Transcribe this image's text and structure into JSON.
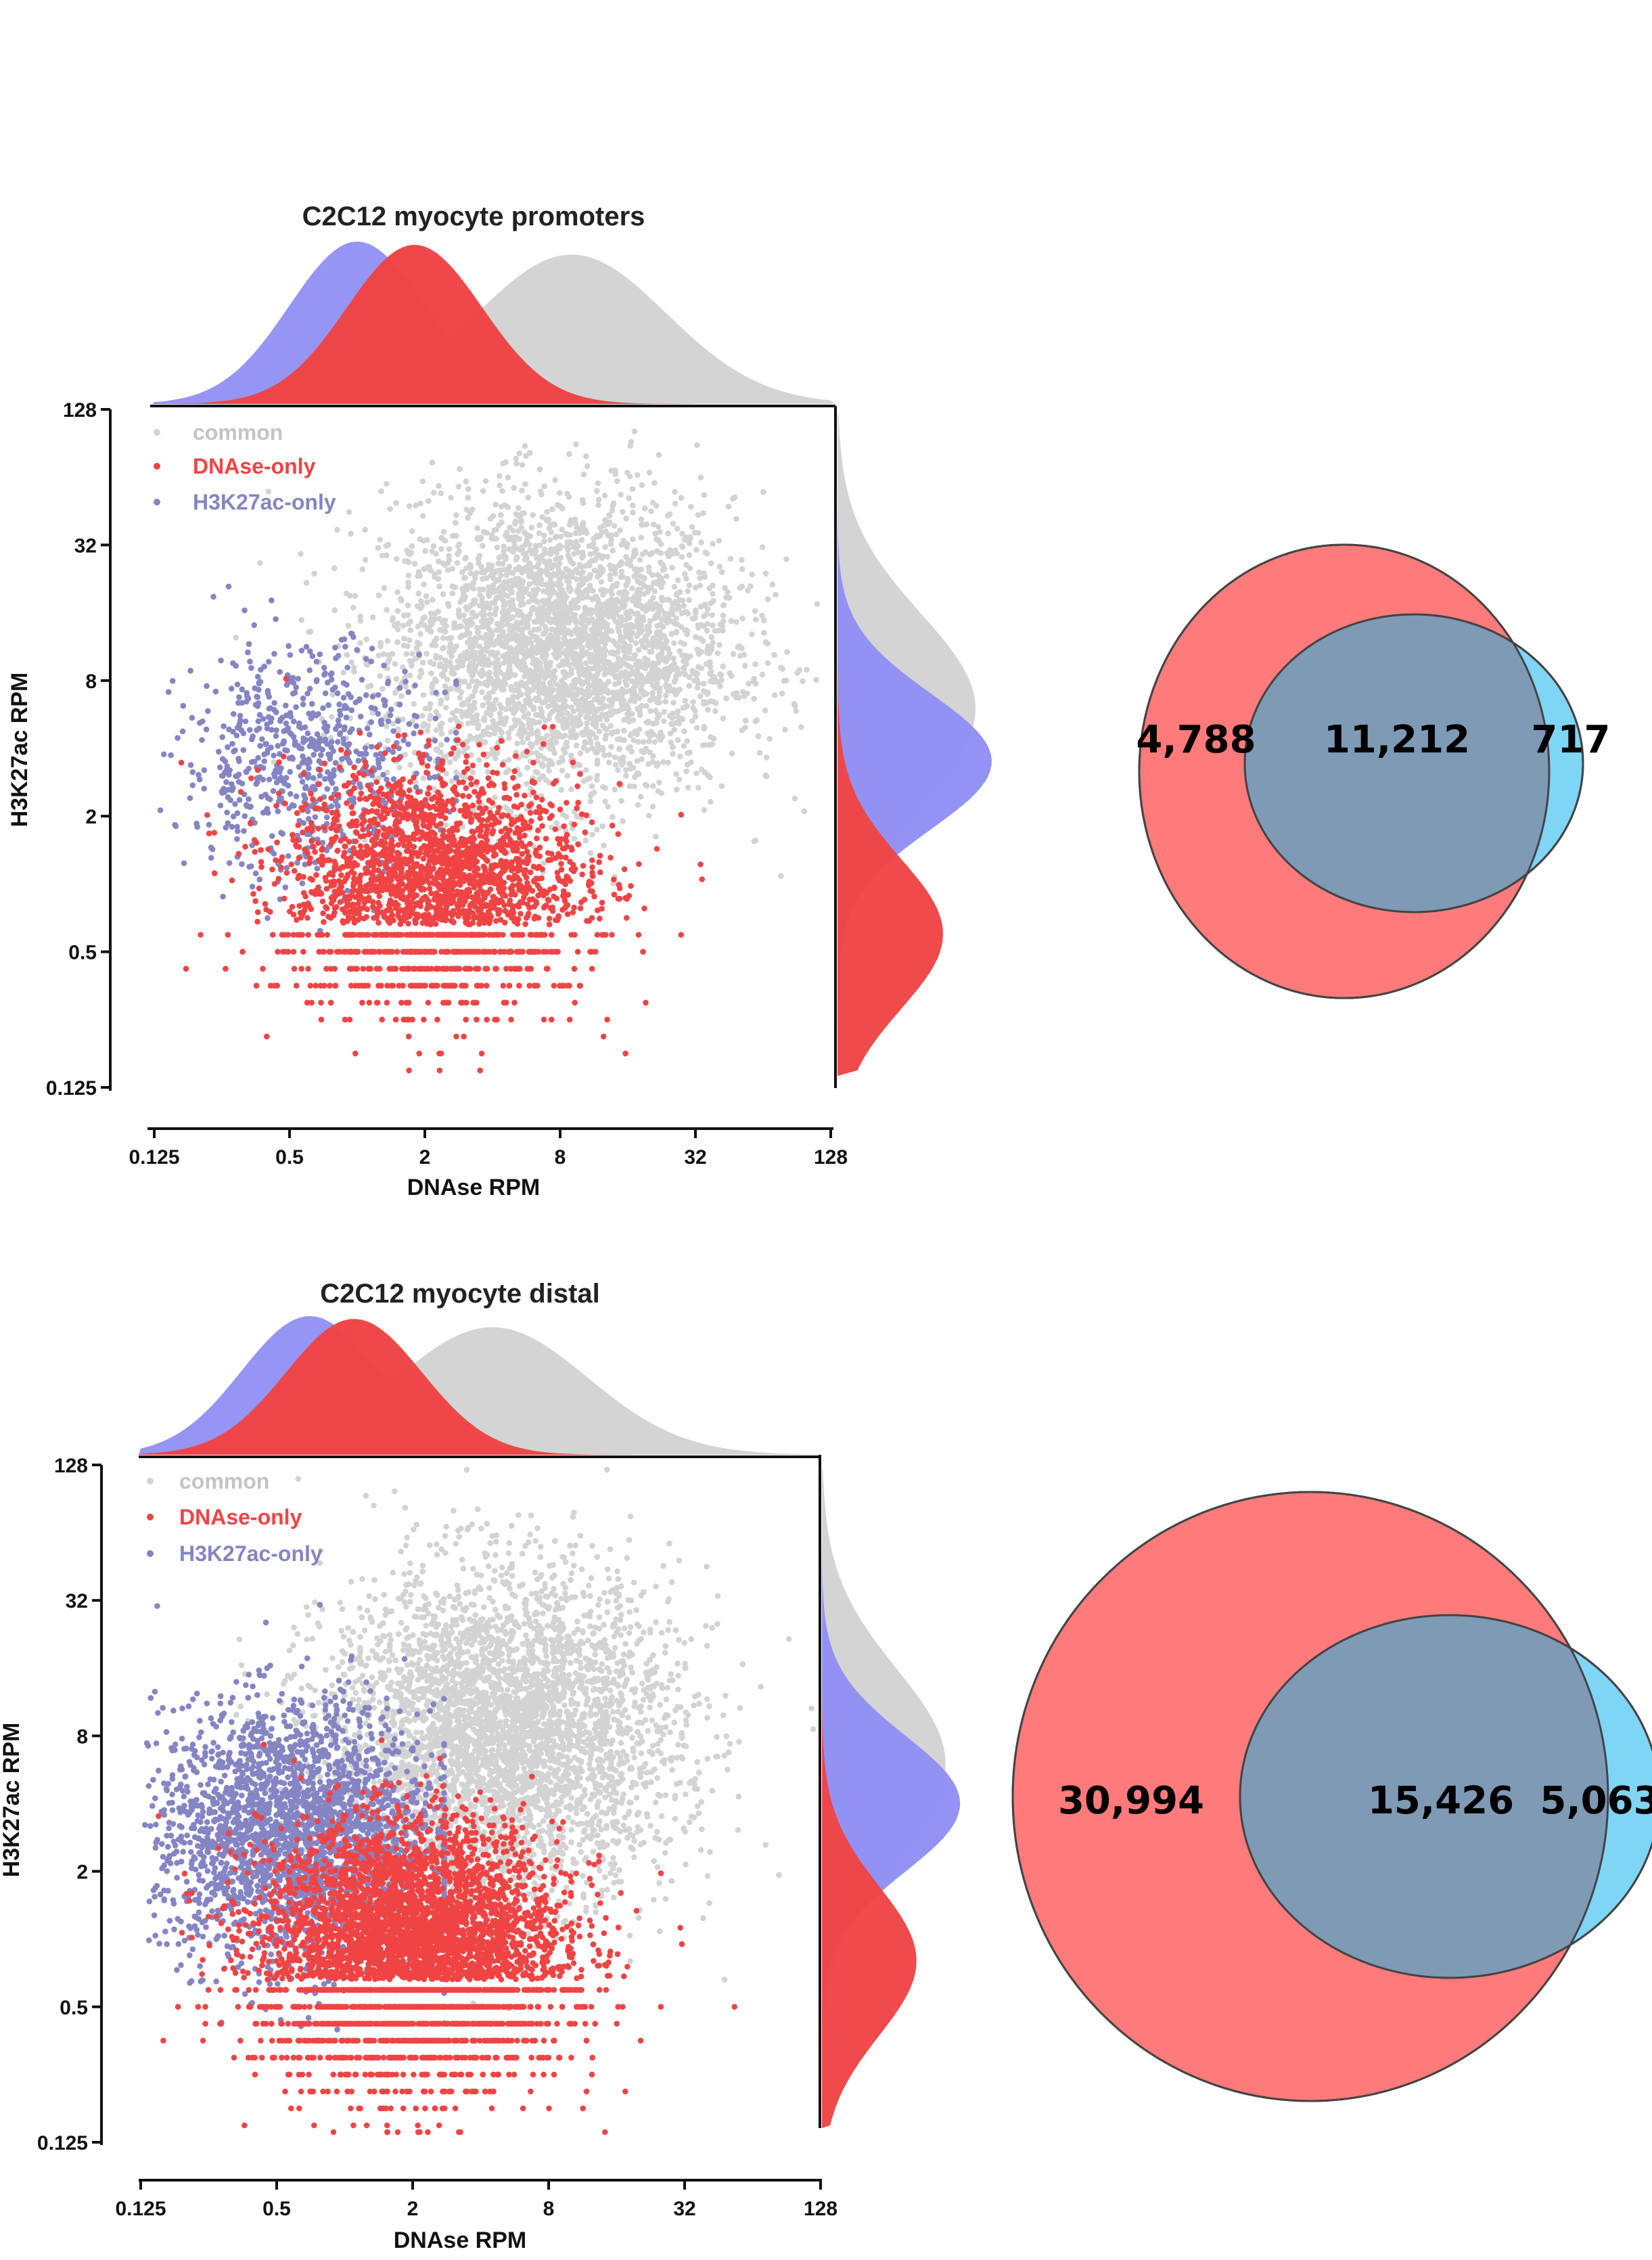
{
  "colors": {
    "common": "#d3d3d3",
    "dnase_only": "#f04444",
    "h3k27ac_only": "#8585c4",
    "density_blue": "#8f8ff5",
    "venn_red": "#ff7b7b",
    "venn_blue": "#7fd5f5",
    "venn_overlap": "#7f9ab5"
  },
  "chart_data": [
    {
      "type": "scatter",
      "title": "C2C12 myocyte promoters",
      "xlabel": "DNAse RPM",
      "ylabel": "H3K27ac RPM",
      "xscale": "log2",
      "yscale": "log2",
      "xlim": [
        0.125,
        128
      ],
      "ylim": [
        0.125,
        128
      ],
      "xticks": [
        "0.125",
        "0.5",
        "2",
        "8",
        "32",
        "128"
      ],
      "yticks": [
        "128",
        "32",
        "8",
        "2",
        "0.5",
        "0.125"
      ],
      "legend": {
        "placement": "top-left",
        "entries": [
          "common",
          "DNAse-only",
          "H3K27ac-only"
        ]
      },
      "series": [
        {
          "name": "common",
          "center": [
            8,
            11
          ],
          "spread_log2": [
            1.5,
            1.3
          ],
          "count_shown": 3500
        },
        {
          "name": "DNAse-only",
          "center": [
            2.2,
            1.0
          ],
          "spread_log2": [
            1.3,
            1.0
          ],
          "count_shown": 2500
        },
        {
          "name": "H3K27ac-only",
          "center": [
            0.6,
            3.5
          ],
          "spread_log2": [
            1.1,
            1.0
          ],
          "count_shown": 700
        }
      ],
      "marginal_x_peaks": {
        "common": 9,
        "DNAse-only": 1.8,
        "H3K27ac-only": 1.0
      },
      "marginal_y_peaks": {
        "common": 6,
        "DNAse-only": 0.6,
        "H3K27ac-only": 3.5
      }
    },
    {
      "type": "scatter",
      "title": "C2C12 myocyte distal",
      "xlabel": "DNAse RPM",
      "ylabel": "H3K27ac RPM",
      "xscale": "log2",
      "yscale": "log2",
      "xlim": [
        0.125,
        128
      ],
      "ylim": [
        0.125,
        128
      ],
      "xticks": [
        "0.125",
        "0.5",
        "2",
        "8",
        "32",
        "128"
      ],
      "yticks": [
        "128",
        "32",
        "8",
        "2",
        "0.5",
        "0.125"
      ],
      "legend": {
        "placement": "top-left",
        "entries": [
          "common",
          "DNAse-only",
          "H3K27ac-only"
        ]
      },
      "series": [
        {
          "name": "common",
          "center": [
            5,
            8
          ],
          "spread_log2": [
            1.5,
            1.4
          ],
          "count_shown": 4000
        },
        {
          "name": "DNAse-only",
          "center": [
            2.0,
            0.9
          ],
          "spread_log2": [
            1.3,
            1.1
          ],
          "count_shown": 4500
        },
        {
          "name": "H3K27ac-only",
          "center": [
            0.6,
            3.0
          ],
          "spread_log2": [
            1.2,
            1.1
          ],
          "count_shown": 2500
        }
      ],
      "marginal_x_peaks": {
        "common": 4.5,
        "DNAse-only": 1.1,
        "H3K27ac-only": 0.7
      },
      "marginal_y_peaks": {
        "common": 6,
        "DNAse-only": 0.8,
        "H3K27ac-only": 4
      }
    }
  ],
  "venn": [
    {
      "left_only": "4,788",
      "overlap": "11,212",
      "right_only": "717"
    },
    {
      "left_only": "30,994",
      "overlap": "15,426",
      "right_only": "5,063"
    }
  ]
}
